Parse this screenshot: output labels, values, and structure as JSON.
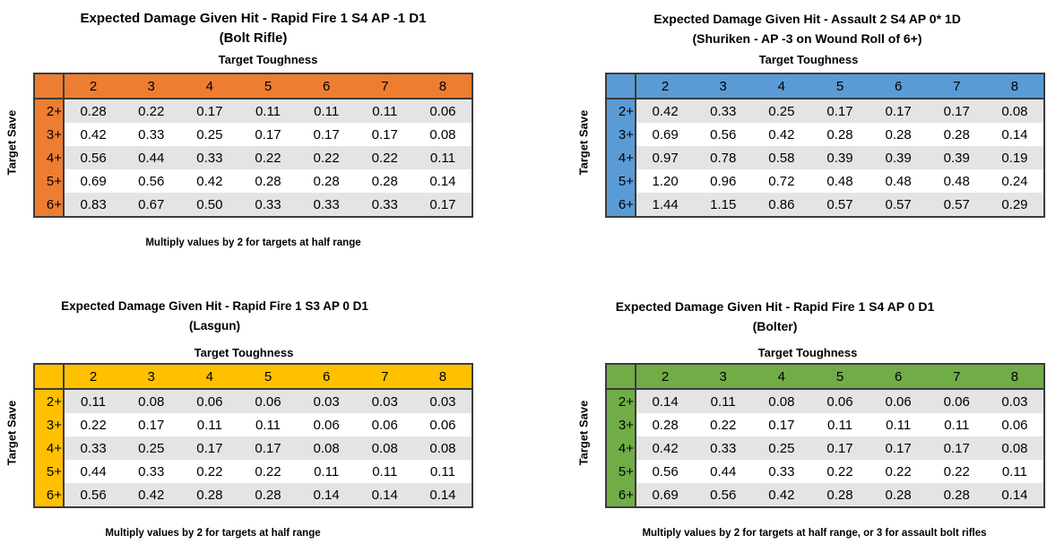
{
  "palette": {
    "background": "#FFFFFF",
    "row_stripe": "#E4E4E4",
    "table_border": "#3B3B3B"
  },
  "chart_data": [
    {
      "type": "table",
      "title": "Expected Damage Given Hit - Rapid Fire 1 S4 AP -1 D1",
      "subtitle": "(Bolt Rifle)",
      "column_axis_label": "Target Toughness",
      "row_axis_label": "Target Save",
      "accent_color": "#ED7D31",
      "columns": [
        "2",
        "3",
        "4",
        "5",
        "6",
        "7",
        "8"
      ],
      "rows": [
        "2+",
        "3+",
        "4+",
        "5+",
        "6+"
      ],
      "values": [
        [
          "0.28",
          "0.22",
          "0.17",
          "0.11",
          "0.11",
          "0.11",
          "0.06"
        ],
        [
          "0.42",
          "0.33",
          "0.25",
          "0.17",
          "0.17",
          "0.17",
          "0.08"
        ],
        [
          "0.56",
          "0.44",
          "0.33",
          "0.22",
          "0.22",
          "0.22",
          "0.11"
        ],
        [
          "0.69",
          "0.56",
          "0.42",
          "0.28",
          "0.28",
          "0.28",
          "0.14"
        ],
        [
          "0.83",
          "0.67",
          "0.50",
          "0.33",
          "0.33",
          "0.33",
          "0.17"
        ]
      ],
      "footnote": "Multiply values by 2 for targets at half range"
    },
    {
      "type": "table",
      "title": "Expected Damage Given Hit - Assault 2 S4 AP 0* 1D",
      "subtitle": "(Shuriken - AP -3 on Wound Roll of 6+)",
      "column_axis_label": "Target Toughness",
      "row_axis_label": "Target Save",
      "accent_color": "#5B9BD5",
      "columns": [
        "2",
        "3",
        "4",
        "5",
        "6",
        "7",
        "8"
      ],
      "rows": [
        "2+",
        "3+",
        "4+",
        "5+",
        "6+"
      ],
      "values": [
        [
          "0.42",
          "0.33",
          "0.25",
          "0.17",
          "0.17",
          "0.17",
          "0.08"
        ],
        [
          "0.69",
          "0.56",
          "0.42",
          "0.28",
          "0.28",
          "0.28",
          "0.14"
        ],
        [
          "0.97",
          "0.78",
          "0.58",
          "0.39",
          "0.39",
          "0.39",
          "0.19"
        ],
        [
          "1.20",
          "0.96",
          "0.72",
          "0.48",
          "0.48",
          "0.48",
          "0.24"
        ],
        [
          "1.44",
          "1.15",
          "0.86",
          "0.57",
          "0.57",
          "0.57",
          "0.29"
        ]
      ]
    },
    {
      "type": "table",
      "title": "Expected Damage Given Hit - Rapid Fire 1 S3 AP 0 D1",
      "subtitle": "(Lasgun)",
      "column_axis_label": "Target Toughness",
      "row_axis_label": "Target Save",
      "accent_color": "#FFC000",
      "columns": [
        "2",
        "3",
        "4",
        "5",
        "6",
        "7",
        "8"
      ],
      "rows": [
        "2+",
        "3+",
        "4+",
        "5+",
        "6+"
      ],
      "values": [
        [
          "0.11",
          "0.08",
          "0.06",
          "0.06",
          "0.03",
          "0.03",
          "0.03"
        ],
        [
          "0.22",
          "0.17",
          "0.11",
          "0.11",
          "0.06",
          "0.06",
          "0.06"
        ],
        [
          "0.33",
          "0.25",
          "0.17",
          "0.17",
          "0.08",
          "0.08",
          "0.08"
        ],
        [
          "0.44",
          "0.33",
          "0.22",
          "0.22",
          "0.11",
          "0.11",
          "0.11"
        ],
        [
          "0.56",
          "0.42",
          "0.28",
          "0.28",
          "0.14",
          "0.14",
          "0.14"
        ]
      ],
      "footnote": "Multiply values by 2 for targets at half range"
    },
    {
      "type": "table",
      "title": "Expected Damage Given Hit - Rapid Fire 1 S4 AP 0 D1",
      "subtitle": "(Bolter)",
      "column_axis_label": "Target Toughness",
      "row_axis_label": "Target Save",
      "accent_color": "#70AD47",
      "columns": [
        "2",
        "3",
        "4",
        "5",
        "6",
        "7",
        "8"
      ],
      "rows": [
        "2+",
        "3+",
        "4+",
        "5+",
        "6+"
      ],
      "values": [
        [
          "0.14",
          "0.11",
          "0.08",
          "0.06",
          "0.06",
          "0.06",
          "0.03"
        ],
        [
          "0.28",
          "0.22",
          "0.17",
          "0.11",
          "0.11",
          "0.11",
          "0.06"
        ],
        [
          "0.42",
          "0.33",
          "0.25",
          "0.17",
          "0.17",
          "0.17",
          "0.08"
        ],
        [
          "0.56",
          "0.44",
          "0.33",
          "0.22",
          "0.22",
          "0.22",
          "0.11"
        ],
        [
          "0.69",
          "0.56",
          "0.42",
          "0.28",
          "0.28",
          "0.28",
          "0.14"
        ]
      ],
      "footnote": "Multiply values by 2 for targets at half range, or 3 for assault bolt rifles"
    }
  ]
}
